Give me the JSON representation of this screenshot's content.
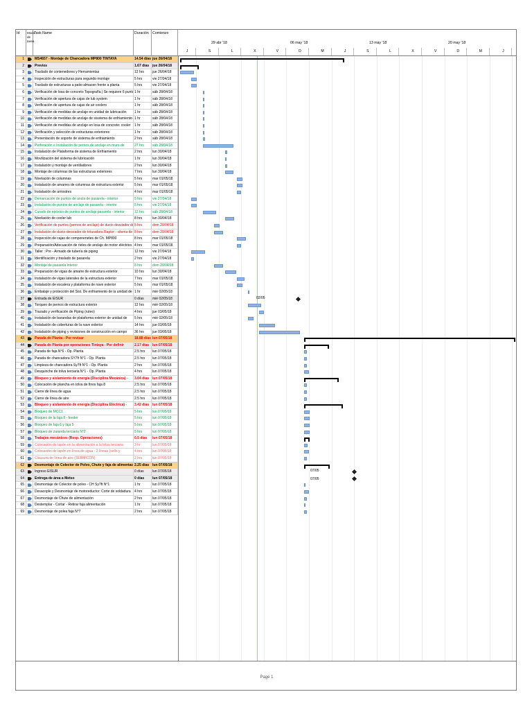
{
  "headers": {
    "id": "Id",
    "mode": "Modo de tarea",
    "name": "Task Name",
    "dur": "Duración",
    "start": "Comienzo"
  },
  "weeks": [
    "29 abr '18",
    "06 may '18",
    "13 may '18",
    "20 may '18"
  ],
  "days": [
    "J",
    "V",
    "S",
    "D",
    "L",
    "M",
    "X",
    "J",
    "V",
    "S",
    "D",
    "L",
    "M",
    "X",
    "J",
    "V",
    "S",
    "D",
    "L",
    "M",
    "X",
    "J",
    "V",
    "S",
    "D",
    "L",
    "M",
    "X",
    "J",
    "V",
    "S",
    "D",
    "L",
    "M",
    "X",
    "J",
    "V",
    "S",
    "D",
    "L",
    "M",
    "X",
    "J",
    "V",
    "S",
    "D",
    "L",
    "M",
    "X",
    "J"
  ],
  "milestones": [
    {
      "label": "02/05"
    },
    {
      "label": "07/05"
    },
    {
      "label": "07/05"
    }
  ],
  "footer": {
    "page": "Page 1"
  },
  "colors": {
    "bar": "#8db3e2",
    "summary_bg": "#fbd28c",
    "green": "#00a24a",
    "red": "#e00000"
  },
  "tasks": [
    {
      "id": "1",
      "name": "MS4657 - Montaje de Chancadora MP800 TINTAYA",
      "dur": "14.54 días",
      "start": "jue 26/04/18",
      "cls": "b",
      "row": "sum1"
    },
    {
      "id": "2",
      "name": "Previos",
      "dur": "1.67 días",
      "start": "jue 26/04/18",
      "cls": "b",
      "row": "sum2"
    },
    {
      "id": "3",
      "name": "Traslado de contenedores y Herramientas",
      "dur": "12 hrs",
      "start": "jue 26/04/18"
    },
    {
      "id": "4",
      "name": "Inspección de estructuras para segundo montaje",
      "dur": "5 hrs",
      "start": "vie 27/04/18"
    },
    {
      "id": "5",
      "name": "Traslado de estructuras a patio almacen frente a planta",
      "dur": "5 hrs",
      "start": "vie 27/04/18"
    },
    {
      "id": "6",
      "name": "Verificación de losa  de concreto Topografía | Se requiere  6 punto",
      "dur": "1 hr",
      "start": "sáb 28/04/18"
    },
    {
      "id": "7",
      "name": "Verificación de apertura de cajas de lub system",
      "dur": "1 hr",
      "start": "sáb 28/04/18"
    },
    {
      "id": "8",
      "name": "Verificación de apertura de cajas de air coolers",
      "dur": "1 hr",
      "start": "sáb 28/04/18"
    },
    {
      "id": "9",
      "name": "Verificación de medidas de anclaje en unidad de lubricación",
      "dur": "1 hr",
      "start": "sáb 28/04/18"
    },
    {
      "id": "10",
      "name": "Verificación de medidas de anclaje de sisstema de enfriamiento",
      "dur": "1 hr",
      "start": "sáb 28/04/18"
    },
    {
      "id": "11",
      "name": "Verificación de medidas de anclaje en losa de concreto: cooler",
      "dur": "1 hr",
      "start": "sáb 28/04/18"
    },
    {
      "id": "12",
      "name": "Verificación y selección de estructuras exteriores",
      "dur": "1 hr",
      "start": "sáb 28/04/18"
    },
    {
      "id": "13",
      "name": "Presentación de soporte de sistema de enfriamiento",
      "dur": "2 hrs",
      "start": "sáb 28/04/18"
    },
    {
      "id": "14",
      "name": "Perforación e Instalación de pernos de anclaje en muro de",
      "dur": "27 hrs",
      "start": "sáb 28/04/18",
      "cls": "green"
    },
    {
      "id": "15",
      "name": "Instalación de Plataforma de sistema de Enfriamiento",
      "dur": "2 hrs",
      "start": "lun 30/04/18"
    },
    {
      "id": "16",
      "name": "Movilización del sistema de lubricación",
      "dur": "1 hr",
      "start": "lun 30/04/18"
    },
    {
      "id": "17",
      "name": "Instalación y montaje de ventiladores",
      "dur": "2 hrs",
      "start": "lun 30/04/18"
    },
    {
      "id": "18",
      "name": "Montaje de columnas de las estructuras exteriores",
      "dur": "7 hrs",
      "start": "lun 30/04/18"
    },
    {
      "id": "19",
      "name": "Nivelación de columnas",
      "dur": "5 hrs",
      "start": "mar 01/05/18"
    },
    {
      "id": "20",
      "name": "Instalación de amarres de columnas de estructura exterior",
      "dur": "5 hrs",
      "start": "mar 01/05/18"
    },
    {
      "id": "21",
      "name": "Instalación de arriostres",
      "dur": "4 hrs",
      "start": "mar 01/05/18"
    },
    {
      "id": "22",
      "name": "Demarcación de puntos de ancla de pasarela - interior",
      "dur": "5 hrs",
      "start": "vie 27/04/18",
      "cls": "green"
    },
    {
      "id": "23",
      "name": "Instalación de puntos de anclaje de pasarela - interior",
      "dur": "5 hrs",
      "start": "vie 27/04/18",
      "cls": "green"
    },
    {
      "id": "24",
      "name": "Curado de epóxico de puntos de anclaje pasarela - interior",
      "dur": "12 hrs",
      "start": "sáb 28/04/18",
      "cls": "green"
    },
    {
      "id": "25",
      "name": "Nivelación de cooler lub",
      "dur": "8 hrs",
      "start": "lun 30/04/18"
    },
    {
      "id": "26",
      "name": "Verificación de puntos (pernos de anclaje) de ducto desviador de",
      "dur": "5 hrs",
      "start": "dom 29/04/18",
      "cls": "red"
    },
    {
      "id": "27",
      "name": "Instalación de ducto desviador de trituradora Raptor - sitema de",
      "dur": "8 hrs",
      "start": "dom 29/04/18",
      "cls": "red"
    },
    {
      "id": "28",
      "name": "Inspección de cajas de componenetes de Ch. MP800",
      "dur": "8 hrs",
      "start": "mar 01/05/18"
    },
    {
      "id": "29",
      "name": "Preparación/Adecuación de rieles de anclaje de motor eléctrico",
      "dur": "4 hrs",
      "start": "mar 01/05/18"
    },
    {
      "id": "30",
      "name": "Taller : Pre - Armado de tubería de piping",
      "dur": "12 hrs",
      "start": "vie 27/04/18"
    },
    {
      "id": "31",
      "name": "Identificación y traslado de pasarela",
      "dur": "2 hrs",
      "start": "vie 27/04/18"
    },
    {
      "id": "32",
      "name": "Montaje de pasarela interior",
      "dur": "8 hrs",
      "start": "dom 29/04/18",
      "cls": "green"
    },
    {
      "id": "33",
      "name": "Preparación de vigas de amarre de estructura exterior",
      "dur": "10 hrs",
      "start": "lun 30/04/18"
    },
    {
      "id": "34",
      "name": "Instalación de vigas laterales de la estructura exterior",
      "dur": "7 hrs",
      "start": "mar 01/05/18"
    },
    {
      "id": "35",
      "name": "Instalación de escalera y plataforma de nave exterior",
      "dur": "5 hrs",
      "start": "mar 01/05/18"
    },
    {
      "id": "36",
      "name": "Embalaje y protección del Sist. De enfriamiento de la unidad de",
      "dur": "1 hr",
      "start": "mié 02/05/18"
    },
    {
      "id": "37",
      "name": "Entrada de EISUR",
      "dur": "0 días",
      "start": "mié 02/05/18",
      "row": "sum2"
    },
    {
      "id": "38",
      "name": "Torqueo de pernos de estructura exterior",
      "dur": "12 hrs",
      "start": "mié 02/05/18"
    },
    {
      "id": "39",
      "name": "Trazado y verificación de Piping (ruteo)",
      "dur": "4 hrs",
      "start": "jue 03/05/18"
    },
    {
      "id": "40",
      "name": "Instalación de barandas de plataforma exterior de unidad de",
      "dur": "5 hrs",
      "start": "mié 02/05/18"
    },
    {
      "id": "41",
      "name": "Instalación de coberturas de la nave exterior",
      "dur": "14 hrs",
      "start": "jue 03/05/18"
    },
    {
      "id": "42",
      "name": "Instalación de piping y revisiones de construcción en campo",
      "dur": "36 hrs",
      "start": "jue 03/05/18"
    },
    {
      "id": "43",
      "name": "Parada de Planta - Por revisar",
      "dur": "18.88 días",
      "start": "lun 07/05/18",
      "cls": "b red",
      "row": "sum1"
    },
    {
      "id": "44",
      "name": "Parada de Planta por operaciones Tintaya - Por definir",
      "dur": "2.17 días",
      "start": "lun 07/05/18",
      "cls": "b red",
      "row": "sum2"
    },
    {
      "id": "45",
      "name": "Parada de faja N°6 - Op. Planta",
      "dur": "2.5 hrs",
      "start": "lun 07/05/18"
    },
    {
      "id": "46",
      "name": "Parada de chancadora SY7ft N°1 - Op. Planta",
      "dur": "2.5 hrs",
      "start": "lun 07/05/18"
    },
    {
      "id": "47",
      "name": "Limpieza de chancadora Sy7ft N°1 - Op. Planta",
      "dur": "2 hrs",
      "start": "lun 07/05/18"
    },
    {
      "id": "48",
      "name": "Desquinche de tolva terciaria N°1 - Op. Planta",
      "dur": "4 hrs",
      "start": "lun 07/05/18"
    },
    {
      "id": "49",
      "name": "Bloqueo y aislamiento de energía (Disciplina Mecánica) -",
      "dur": "3.04 días",
      "start": "lun 07/05/18",
      "cls": "b red"
    },
    {
      "id": "50",
      "name": "Colocación de plancha en tolva de finos faja 8",
      "dur": "2.5 hrs",
      "start": "lun 07/05/18"
    },
    {
      "id": "51",
      "name": "Cierre de línea de agua",
      "dur": "2.5 hrs",
      "start": "lun 07/05/18"
    },
    {
      "id": "52",
      "name": "Cierre de línea de aire",
      "dur": "2.5 hrs",
      "start": "lun 07/05/18"
    },
    {
      "id": "53",
      "name": "Bloqueo y aislamiento de energía (Disciplina Eléctrica) -",
      "dur": "3.42 días",
      "start": "lun 07/05/18",
      "cls": "b red"
    },
    {
      "id": "54",
      "name": "Bloqueo de MCC1",
      "dur": "5 hrs",
      "start": "lun 07/05/18",
      "cls": "green"
    },
    {
      "id": "55",
      "name": "Bloqueo de la faja 8 - feeder",
      "dur": "5 hrs",
      "start": "lun 07/05/18",
      "cls": "green"
    },
    {
      "id": "56",
      "name": "Bloqueo de faja 6 y faja 5",
      "dur": "5 hrs",
      "start": "lun 07/05/18",
      "cls": "green"
    },
    {
      "id": "57",
      "name": "Bloqueo de zaranda terciaria N°2",
      "dur": "5 hrs",
      "start": "lun 07/05/18",
      "cls": "green"
    },
    {
      "id": "58",
      "name": "Trabajos mecánicos (Resp. Operaciones)",
      "dur": "0.5 días",
      "start": "lun 07/05/18",
      "cls": "b red"
    },
    {
      "id": "59",
      "name": "Colocación de tapón en la alimentación a la tolva terciaria",
      "dur": "3 hr",
      "start": "lun 07/05/18",
      "cls": "lred"
    },
    {
      "id": "60",
      "name": "Colocación de tapón en línea de agua - 2 líneas (sello y",
      "dur": "4 hrs",
      "start": "lun 07/05/18",
      "cls": "lred"
    },
    {
      "id": "61",
      "name": "Clausura de línea de aire (SERMICON)",
      "dur": "2 hrs",
      "start": "lun 07/05/18",
      "cls": "lred"
    },
    {
      "id": "62",
      "name": "Desmontaje de Colector de Polvo, Chute y faja de alimentación",
      "dur": "2.25 días",
      "start": "lun 07/05/18",
      "cls": "b",
      "row": "sum1"
    },
    {
      "id": "63",
      "name": "Ingreso EISUR",
      "dur": "0 días",
      "start": "lun 07/05/18",
      "row": "sum2"
    },
    {
      "id": "64",
      "name": "Entrega de área a Metso",
      "dur": "0 días",
      "start": "lun 07/05/18",
      "cls": "b",
      "row": "sum2"
    },
    {
      "id": "65",
      "name": "Desmontaje de Colector de polvo - CH Sy7ft N°1",
      "dur": "1 hr",
      "start": "lun 07/05/18"
    },
    {
      "id": "66",
      "name": "Desacople y Desmontaje de motoreductor: Corte de soldadura",
      "dur": "4 hrs",
      "start": "lun 07/05/18"
    },
    {
      "id": "67",
      "name": "Desmontaje de Chute de alimentación",
      "dur": "2 hrs",
      "start": "lun 07/05/18"
    },
    {
      "id": "68",
      "name": "Destemplar - Cortar - Retirar faja alimentación",
      "dur": "1 hr",
      "start": "lun 07/05/18"
    },
    {
      "id": "69",
      "name": "Desmontaje de polea faja N°7",
      "dur": "2 hrs",
      "start": "lun 07/05/18"
    }
  ]
}
